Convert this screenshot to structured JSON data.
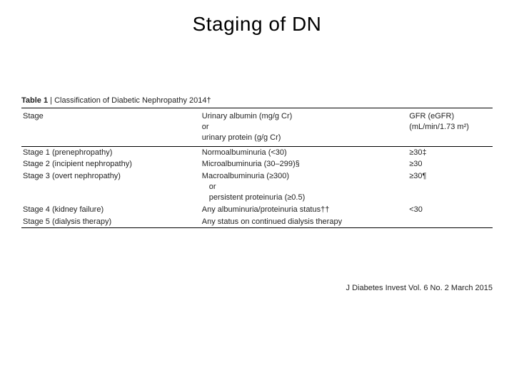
{
  "title": "Staging of DN",
  "table": {
    "caption_label": "Table 1",
    "caption_sep": " | ",
    "caption_text": "Classification of Diabetic Nephropathy 2014†",
    "columns": {
      "stage": "Stage",
      "albumin_l1": "Urinary albumin (mg/g Cr)",
      "albumin_l2": "or",
      "albumin_l3": "urinary protein (g/g Cr)",
      "gfr_l1": "GFR (eGFR)",
      "gfr_l2": "(mL/min/1.73 m²)"
    },
    "rows": [
      {
        "stage": "Stage 1 (prenephropathy)",
        "alb": "Normoalbuminuria (<30)",
        "alb2": "",
        "gfr": "≥30‡"
      },
      {
        "stage": "Stage 2 (incipient nephropathy)",
        "alb": "Microalbuminuria (30–299)§",
        "alb2": "",
        "gfr": "≥30"
      },
      {
        "stage": "Stage 3 (overt nephropathy)",
        "alb": "Macroalbuminuria (≥300)",
        "alb2": "or",
        "gfr": "≥30¶"
      },
      {
        "stage": "",
        "alb": "",
        "alb2": "persistent proteinuria (≥0.5)",
        "gfr": ""
      },
      {
        "stage": "Stage 4 (kidney failure)",
        "alb": "Any albuminuria/proteinuria status††",
        "alb2": "",
        "gfr": "<30"
      },
      {
        "stage": "Stage 5 (dialysis therapy)",
        "alb": "Any status on continued dialysis therapy",
        "alb2": "",
        "gfr": ""
      }
    ]
  },
  "citation": "J Diabetes Invest Vol. 6 No. 2 March 2015"
}
